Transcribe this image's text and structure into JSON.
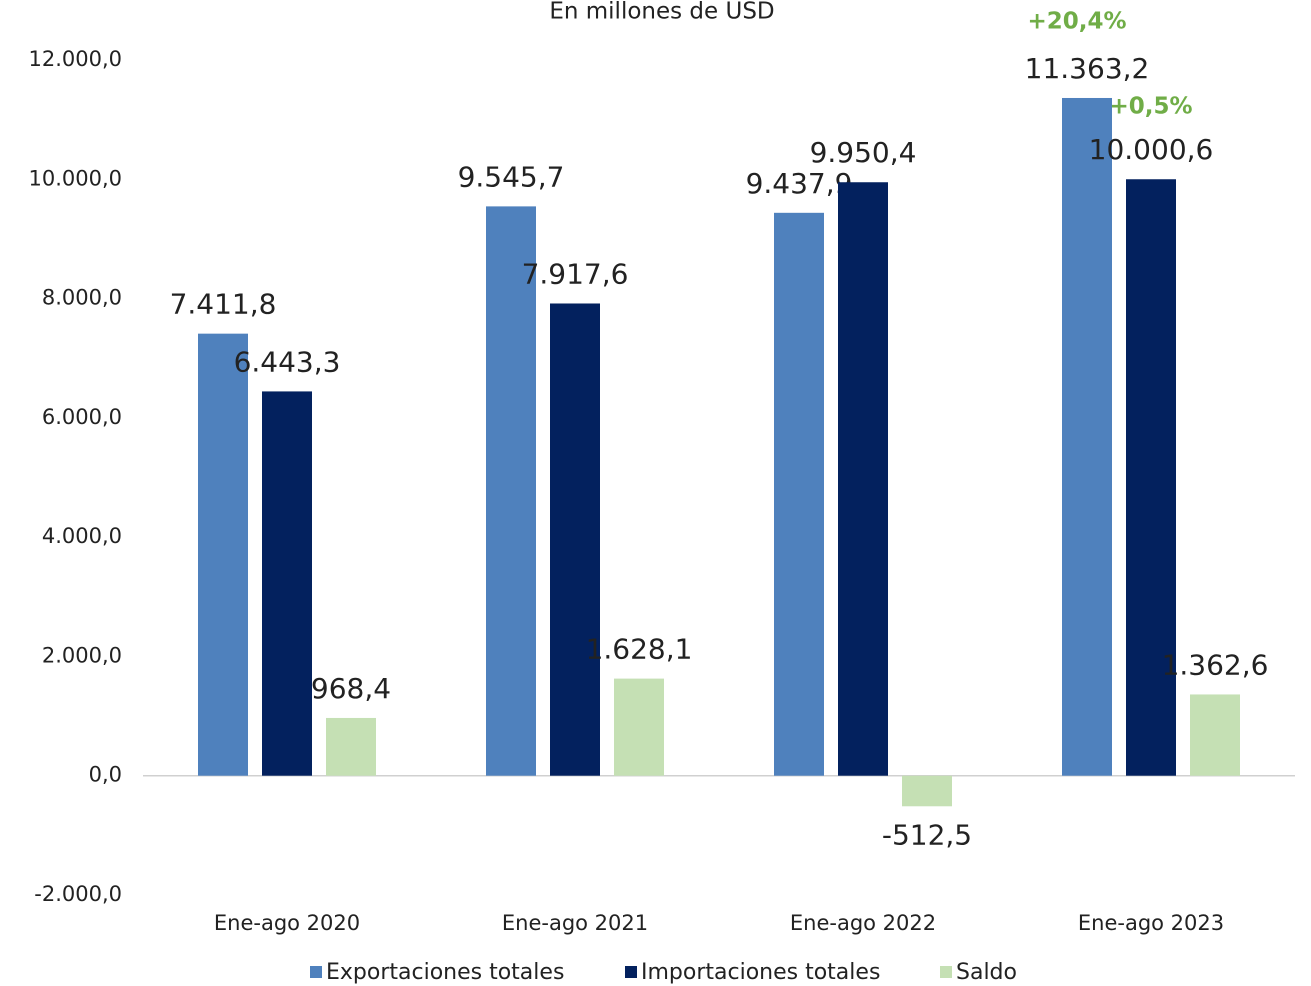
{
  "chart_data": {
    "type": "bar",
    "title": "En millones de USD",
    "categories": [
      "Ene-ago 2020",
      "Ene-ago 2021",
      "Ene-ago 2022",
      "Ene-ago 2023"
    ],
    "series": [
      {
        "name": "Exportaciones totales",
        "color": "#4f81bd",
        "values": [
          7411.8,
          9545.7,
          9437.9,
          11363.2
        ],
        "value_labels": [
          "7.411,8",
          "9.545,7",
          "9.437,9",
          "11.363,2"
        ]
      },
      {
        "name": "Importaciones totales",
        "color": "#03215e",
        "values": [
          6443.3,
          7917.6,
          9950.4,
          10000.6
        ],
        "value_labels": [
          "6.443,3",
          "7.917,6",
          "9.950,4",
          "10.000,6"
        ]
      },
      {
        "name": "Saldo",
        "color": "#c5e0b4",
        "values": [
          968.4,
          1628.1,
          -512.5,
          1362.6
        ],
        "value_labels": [
          "968,4",
          "1.628,1",
          "-512,5",
          "1.362,6"
        ]
      }
    ],
    "annotations": [
      "+20,4%",
      "+0,5%"
    ],
    "ylim": [
      -2000,
      12000
    ],
    "yticks": [
      {
        "value": -2000,
        "label": "-2.000,0"
      },
      {
        "value": 0,
        "label": "0,0"
      },
      {
        "value": 2000,
        "label": "2.000,0"
      },
      {
        "value": 4000,
        "label": "4.000,0"
      },
      {
        "value": 6000,
        "label": "6.000,0"
      },
      {
        "value": 8000,
        "label": "8.000,0"
      },
      {
        "value": 10000,
        "label": "10.000,0"
      },
      {
        "value": 12000,
        "label": "12.000,0"
      }
    ],
    "legend": "bottom"
  }
}
